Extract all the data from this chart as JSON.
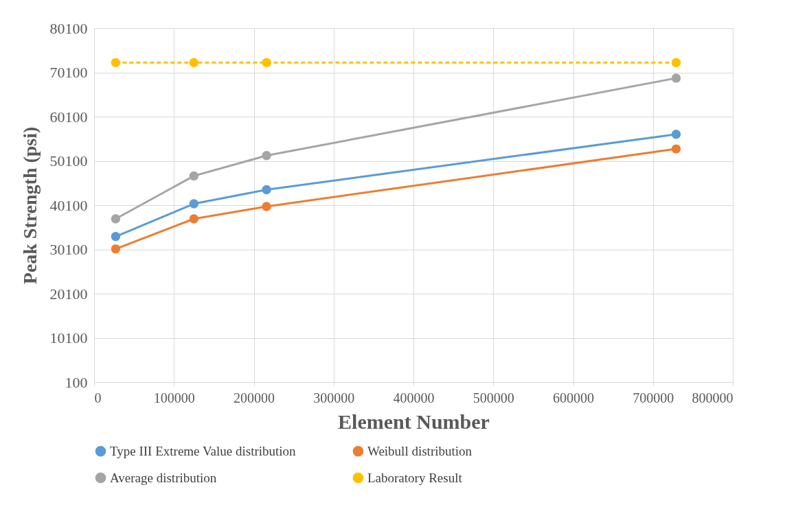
{
  "chart_data": {
    "type": "line",
    "xlabel": "Element Number",
    "ylabel": "Peak Strength (psi)",
    "x": [
      27000,
      125000,
      216000,
      729000
    ],
    "series": [
      {
        "name": "Type III Extreme Value distribution",
        "color": "#5b9bd5",
        "values": [
          33000,
          40400,
          43600,
          56100
        ]
      },
      {
        "name": "Weibull distribution",
        "color": "#ed7d31",
        "values": [
          30200,
          37000,
          39800,
          52800
        ]
      },
      {
        "name": "Average distribution",
        "color": "#a5a5a5",
        "values": [
          37000,
          46700,
          51300,
          68800
        ]
      },
      {
        "name": "Laboratory Result",
        "color": "#ffc000",
        "values": [
          72300,
          72300,
          72300,
          72300
        ],
        "line_style": "dashed"
      }
    ],
    "xlim": [
      0,
      800000
    ],
    "xticks": [
      0,
      100000,
      200000,
      300000,
      400000,
      500000,
      600000,
      700000,
      800000
    ],
    "ylim": [
      100,
      80100
    ],
    "yticks": [
      100,
      10100,
      20100,
      30100,
      40100,
      50100,
      60100,
      70100,
      80100
    ],
    "grid": true,
    "legend": "bottom",
    "marker": "circle",
    "line_style": "solid"
  }
}
